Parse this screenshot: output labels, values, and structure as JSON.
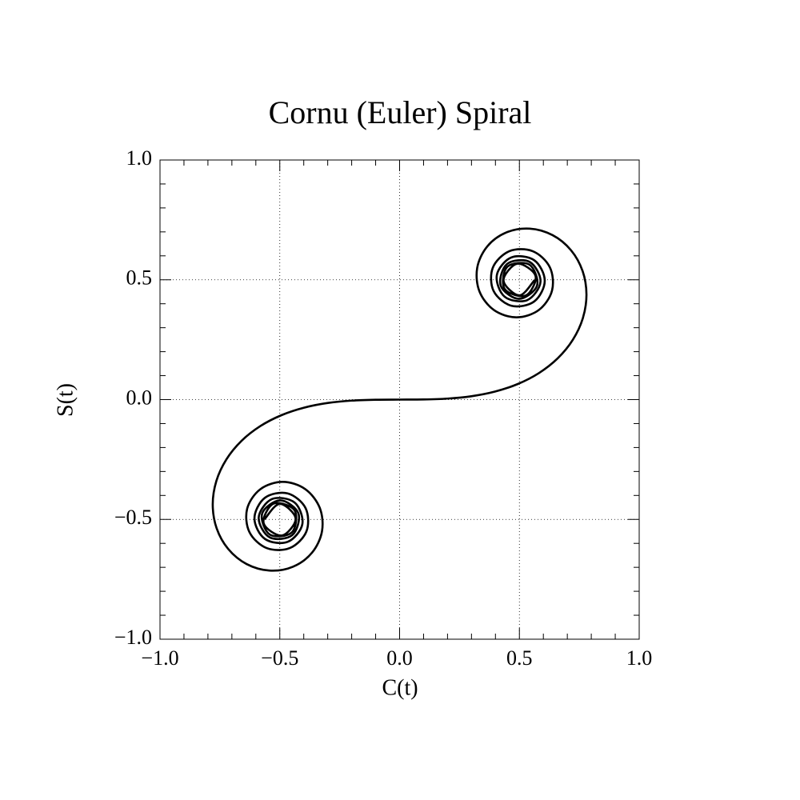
{
  "chart_data": {
    "type": "line",
    "title": "Cornu (Euler) Spiral",
    "xlabel": "C(t)",
    "ylabel": "S(t)",
    "x": [
      -0.5636,
      -0.5002,
      -0.4338,
      -0.4914,
      -0.5673,
      -0.5261,
      -0.4383,
      -0.4494,
      -0.5417,
      -0.5737,
      -0.4984,
      -0.4223,
      -0.4481,
      -0.542,
      -0.588,
      -0.5326,
      -0.4385,
      -0.4058,
      -0.4664,
      -0.5616,
      -0.6058,
      -0.5624,
      -0.4675,
      -0.3925,
      -0.3889,
      -0.4574,
      -0.555,
      -0.6266,
      -0.6363,
      -0.5816,
      -0.4882,
      -0.3944,
      -0.3336,
      -0.3238,
      -0.3655,
      -0.4453,
      -0.5431,
      -0.6386,
      -0.7154,
      -0.7638,
      -0.7799,
      -0.7648,
      -0.7228,
      -0.6597,
      -0.5811,
      -0.4923,
      -0.3975,
      -0.2994,
      -0.1999,
      -0.0999,
      0,
      0.0999,
      0.1999,
      0.2994,
      0.3975,
      0.4923,
      0.5811,
      0.6597,
      0.7228,
      0.7648,
      0.7799,
      0.7638,
      0.7154,
      0.6386,
      0.5431,
      0.4453,
      0.3655,
      0.3238,
      0.3336,
      0.3944,
      0.4882,
      0.5816,
      0.6363,
      0.6266,
      0.555,
      0.4574,
      0.3889,
      0.3925,
      0.4675,
      0.5624,
      0.6058,
      0.5616,
      0.4664,
      0.4058,
      0.4385,
      0.5326,
      0.588,
      0.542,
      0.4481,
      0.4223,
      0.4984,
      0.5737,
      0.5417,
      0.4494,
      0.4383,
      0.5261,
      0.5673,
      0.4914,
      0.4338,
      0.5002,
      0.5636
    ],
    "series": [
      {
        "color": "#000000",
        "values": [
          -0.4992,
          -0.435,
          -0.4968,
          -0.5672,
          -0.5162,
          -0.4342,
          -0.4623,
          -0.554,
          -0.5632,
          -0.4758,
          -0.4205,
          -0.4752,
          -0.5656,
          -0.575,
          -0.4923,
          -0.4152,
          -0.4296,
          -0.5192,
          -0.5933,
          -0.5818,
          -0.4963,
          -0.4101,
          -0.3915,
          -0.4529,
          -0.55,
          -0.6192,
          -0.6197,
          -0.5532,
          -0.4557,
          -0.3743,
          -0.3434,
          -0.3733,
          -0.4509,
          -0.5492,
          -0.6389,
          -0.6975,
          -0.7135,
          -0.6863,
          -0.6234,
          -0.5365,
          -0.4383,
          -0.3398,
          -0.2493,
          -0.1721,
          -0.1105,
          -0.0647,
          -0.0334,
          -0.0141,
          -0.0042,
          -0.0005,
          0,
          0.0005,
          0.0042,
          0.0141,
          0.0334,
          0.0647,
          0.1105,
          0.1721,
          0.2493,
          0.3398,
          0.4383,
          0.5365,
          0.6234,
          0.6863,
          0.7135,
          0.6975,
          0.6389,
          0.5492,
          0.4509,
          0.3733,
          0.3434,
          0.3743,
          0.4557,
          0.5532,
          0.6197,
          0.6192,
          0.55,
          0.4529,
          0.3915,
          0.4101,
          0.4963,
          0.5818,
          0.5933,
          0.5192,
          0.4296,
          0.4152,
          0.4923,
          0.575,
          0.5656,
          0.4752,
          0.4205,
          0.4758,
          0.5632,
          0.554,
          0.4623,
          0.4342,
          0.5162,
          0.5672,
          0.4968,
          0.435,
          0.4992
        ]
      }
    ],
    "xlim": [
      -1,
      1
    ],
    "ylim": [
      -1,
      1
    ],
    "xticks": [
      {
        "value": -1,
        "label": "−1.0"
      },
      {
        "value": -0.5,
        "label": "−0.5"
      },
      {
        "value": 0,
        "label": "0.0"
      },
      0.5,
      {
        "value": 1,
        "label": "1.0"
      }
    ],
    "yticks": [
      {
        "value": -1,
        "label": "−1.0"
      },
      {
        "value": -0.5,
        "label": "−0.5"
      },
      {
        "value": 0,
        "label": "0.0"
      },
      0.5,
      {
        "value": 1,
        "label": "1.0"
      }
    ],
    "xminorticks": [
      -0.9,
      -0.8,
      -0.7,
      -0.6,
      -0.4,
      -0.3,
      -0.2,
      -0.1,
      0.1,
      0.2,
      0.3,
      0.4,
      0.6,
      0.7,
      0.8,
      0.9
    ],
    "yminorticks": [
      -0.9,
      -0.8,
      -0.7,
      -0.6,
      -0.4,
      -0.3,
      -0.2,
      -0.1,
      0.1,
      0.2,
      0.3,
      0.4,
      0.6,
      0.7,
      0.8,
      0.9
    ],
    "grid": true
  }
}
